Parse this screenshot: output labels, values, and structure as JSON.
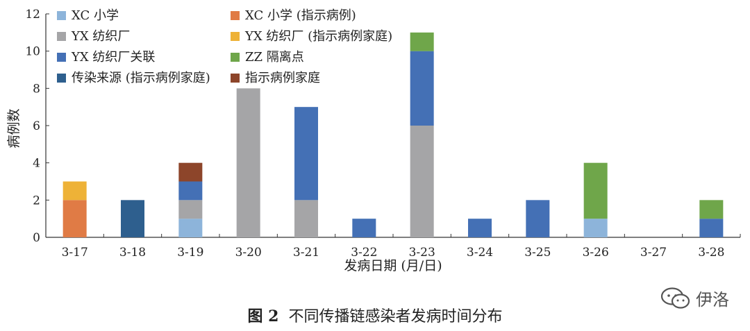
{
  "chart_data": {
    "type": "bar",
    "stacked": true,
    "categories": [
      "3-17",
      "3-18",
      "3-19",
      "3-20",
      "3-21",
      "3-22",
      "3-23",
      "3-24",
      "3-25",
      "3-26",
      "3-27",
      "3-28"
    ],
    "series": [
      {
        "name": "XC 小学",
        "color": "#8db4da",
        "values": [
          0,
          0,
          1,
          0,
          0,
          0,
          0,
          0,
          0,
          1,
          0,
          0
        ]
      },
      {
        "name": "XC 小学 (指示病例)",
        "color": "#e07b45",
        "values": [
          2,
          0,
          0,
          0,
          0,
          0,
          0,
          0,
          0,
          0,
          0,
          0
        ]
      },
      {
        "name": "YX 纺织厂",
        "color": "#a5a5a7",
        "values": [
          0,
          0,
          1,
          8,
          2,
          0,
          6,
          0,
          0,
          0,
          0,
          0
        ]
      },
      {
        "name": "YX 纺织厂 (指示病例家庭)",
        "color": "#eeb237",
        "values": [
          1,
          0,
          0,
          0,
          0,
          0,
          0,
          0,
          0,
          0,
          0,
          0
        ]
      },
      {
        "name": "YX 纺织厂关联",
        "color": "#4470b5",
        "values": [
          0,
          0,
          1,
          0,
          5,
          1,
          4,
          1,
          2,
          0,
          0,
          1
        ]
      },
      {
        "name": "ZZ 隔离点",
        "color": "#6fa64a",
        "values": [
          0,
          0,
          0,
          0,
          0,
          0,
          1,
          0,
          0,
          3,
          0,
          1
        ]
      },
      {
        "name": "传染来源 (指示病例家庭)",
        "color": "#2e5f8e",
        "values": [
          0,
          2,
          0,
          0,
          0,
          0,
          0,
          0,
          0,
          0,
          0,
          0
        ]
      },
      {
        "name": "指示病例家庭",
        "color": "#8d452a",
        "values": [
          0,
          0,
          1,
          0,
          0,
          0,
          0,
          0,
          0,
          0,
          0,
          0
        ]
      }
    ],
    "xlabel": "发病日期 (月/日)",
    "ylabel": "病例数",
    "ylim": [
      0,
      12
    ],
    "yticks": [
      "0",
      "2",
      "4",
      "6",
      "8",
      "10",
      "12"
    ],
    "grid": false,
    "legend_position": "top-left"
  },
  "caption": {
    "figure_label": "图 2",
    "text": "不同传播链感染者发病时间分布"
  },
  "watermark": {
    "text": "伊洛",
    "icon": "wechat-icon"
  }
}
